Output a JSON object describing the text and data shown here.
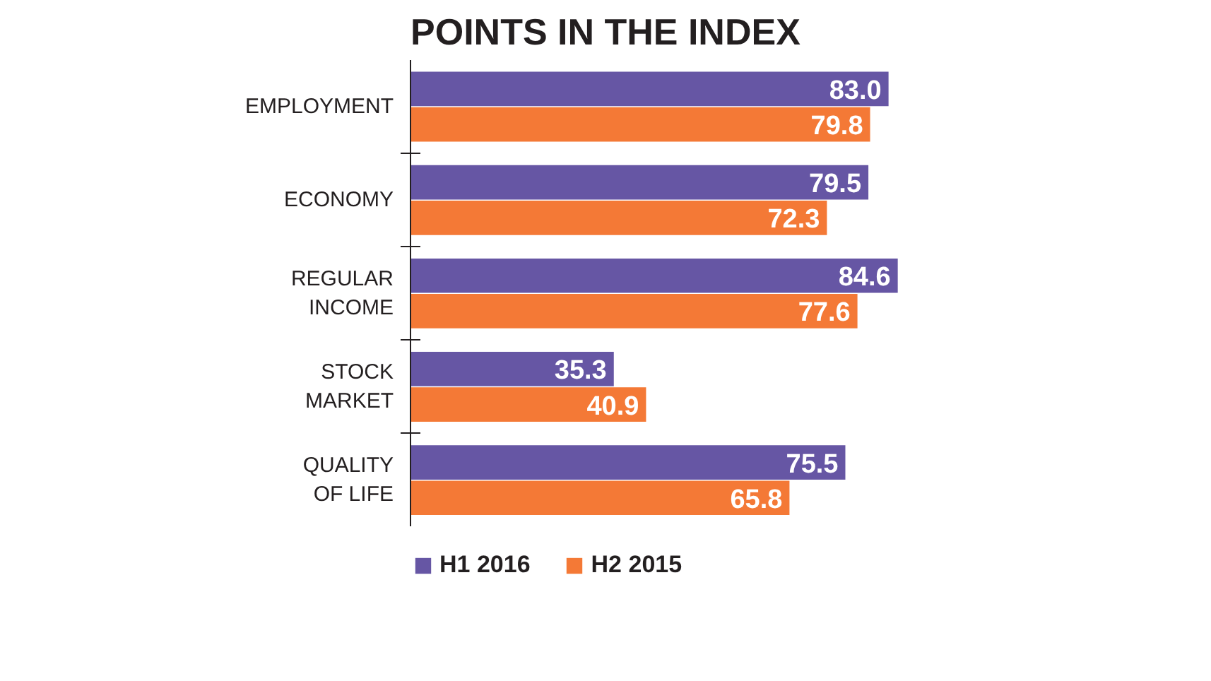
{
  "chart_data": {
    "type": "bar",
    "orientation": "horizontal",
    "title": "POINTS IN THE INDEX",
    "categories": [
      "EMPLOYMENT",
      "ECONOMY",
      "REGULAR INCOME",
      "STOCK MARKET",
      "QUALITY OF LIFE"
    ],
    "series": [
      {
        "name": "H1 2016",
        "color": "#6656a4",
        "values": [
          83.0,
          79.5,
          84.6,
          35.3,
          75.5
        ],
        "value_labels": [
          "83.0",
          "79.5",
          "84.6",
          "35.3",
          "75.5"
        ]
      },
      {
        "name": "H2 2015",
        "color": "#f47936",
        "values": [
          79.8,
          72.3,
          77.6,
          40.9,
          65.8
        ],
        "value_labels": [
          "79.8",
          "72.3",
          "77.6",
          "40.9",
          "65.8"
        ]
      }
    ],
    "legend": "bottom"
  }
}
